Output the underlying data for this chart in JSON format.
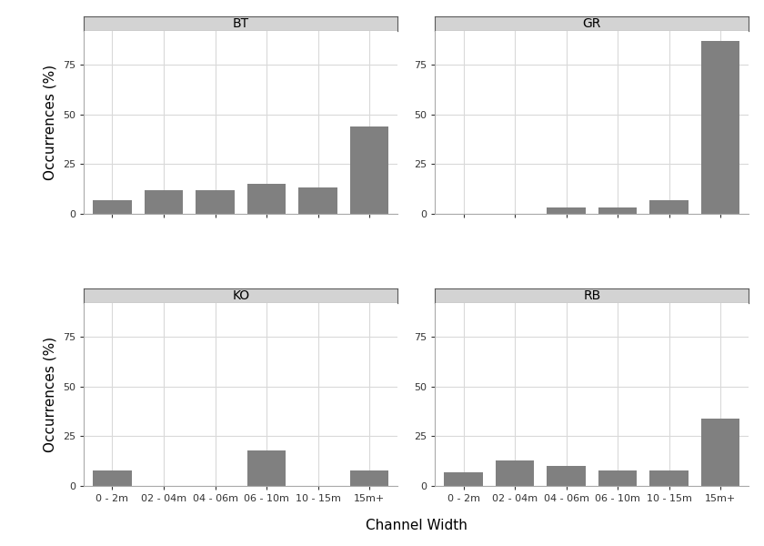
{
  "panels": [
    {
      "title": "BT",
      "values": [
        7,
        12,
        12,
        15,
        13,
        44
      ]
    },
    {
      "title": "GR",
      "values": [
        0,
        0,
        3,
        3,
        7,
        87
      ]
    },
    {
      "title": "KO",
      "values": [
        8,
        0,
        0,
        18,
        0,
        8
      ]
    },
    {
      "title": "RB",
      "values": [
        7,
        13,
        10,
        8,
        8,
        34
      ]
    }
  ],
  "categories": [
    "0 - 2m",
    "02 - 04m",
    "04 - 06m",
    "06 - 10m",
    "10 - 15m",
    "15m+"
  ],
  "ylabel": "Occurrences (%)",
  "xlabel": "Channel Width",
  "bar_color": "#808080",
  "panel_bg": "#ffffff",
  "strip_bg": "#d3d3d3",
  "strip_line_color": "#5a5a5a",
  "ylim": [
    0,
    92
  ],
  "yticks": [
    0,
    25,
    50,
    75
  ],
  "grid_color": "#d9d9d9",
  "fig_bg": "#ffffff",
  "title_fontsize": 10,
  "tick_fontsize": 8,
  "label_fontsize": 11
}
